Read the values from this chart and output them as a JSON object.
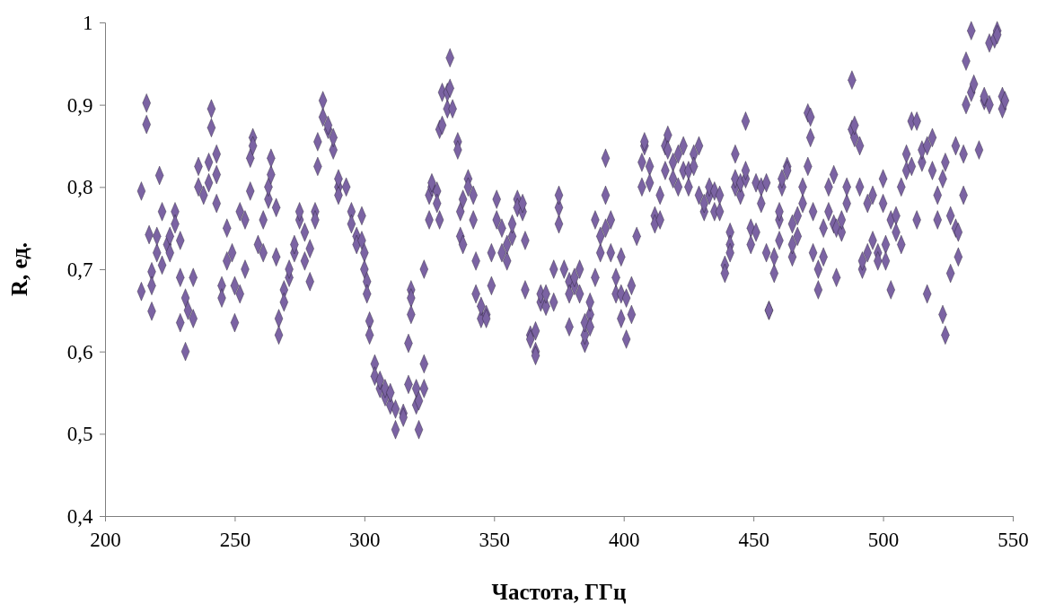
{
  "chart_data": {
    "type": "scatter",
    "xlabel": "Частота, ГГц",
    "ylabel": "R, ед.",
    "xlim": [
      200,
      550
    ],
    "xticks": [
      200,
      250,
      300,
      350,
      400,
      450,
      500,
      550
    ],
    "ylim": [
      0.4,
      1
    ],
    "yticks": [
      {
        "value": 0.4,
        "label": "0,4"
      },
      {
        "value": 0.5,
        "label": "0,5"
      },
      {
        "value": 0.6,
        "label": "0,6"
      },
      {
        "value": 0.7,
        "label": "0,7"
      },
      {
        "value": 0.8,
        "label": "0,8"
      },
      {
        "value": 0.9,
        "label": "0,9"
      },
      1
    ],
    "grid": false,
    "marker": "diamond",
    "series": [
      {
        "color": "#7b63a3",
        "x": [
          214,
          214,
          216,
          216,
          217,
          218,
          218,
          218,
          220,
          220,
          221,
          222,
          222,
          224,
          225,
          225,
          227,
          227,
          229,
          229,
          229,
          231,
          231,
          232,
          234,
          234,
          236,
          236,
          238,
          240,
          240,
          241,
          241,
          243,
          243,
          243,
          245,
          245,
          247,
          247,
          249,
          250,
          250,
          252,
          252,
          254,
          254,
          256,
          256,
          257,
          257,
          259,
          261,
          261,
          263,
          263,
          264,
          264,
          266,
          266,
          267,
          267,
          269,
          269,
          271,
          271,
          273,
          273,
          275,
          275,
          277,
          277,
          279,
          279,
          281,
          281,
          282,
          282,
          284,
          284,
          286,
          286,
          288,
          288,
          290,
          290,
          290,
          293,
          295,
          295,
          297,
          297,
          299,
          299,
          300,
          300,
          301,
          301,
          302,
          302,
          304,
          304,
          306,
          306,
          308,
          308,
          310,
          310,
          312,
          312,
          315,
          315,
          317,
          317,
          318,
          318,
          318,
          320,
          320,
          321,
          321,
          323,
          323,
          323,
          325,
          325,
          326,
          326,
          328,
          328,
          329,
          329,
          330,
          330,
          332,
          332,
          333,
          333,
          334,
          336,
          336,
          337,
          337,
          338,
          338,
          340,
          340,
          342,
          342,
          343,
          343,
          345,
          345,
          347,
          347,
          349,
          349,
          351,
          351,
          353,
          353,
          355,
          355,
          357,
          357,
          359,
          359,
          361,
          361,
          362,
          362,
          364,
          364,
          366,
          366,
          366,
          368,
          368,
          370,
          370,
          373,
          373,
          375,
          375,
          375,
          377,
          379,
          379,
          379,
          381,
          381,
          383,
          383,
          385,
          385,
          385,
          387,
          387,
          387,
          389,
          389,
          391,
          391,
          393,
          393,
          393,
          395,
          395,
          397,
          397,
          399,
          399,
          399,
          401,
          401,
          403,
          403,
          405,
          407,
          407,
          408,
          408,
          410,
          410,
          412,
          412,
          414,
          414,
          416,
          416,
          417,
          417,
          419,
          419,
          421,
          421,
          423,
          423,
          425,
          425,
          427,
          427,
          429,
          429,
          431,
          431,
          433,
          433,
          435,
          435,
          437,
          437,
          439,
          439,
          441,
          441,
          441,
          443,
          443,
          443,
          445,
          445,
          447,
          447,
          447,
          449,
          449,
          451,
          451,
          453,
          453,
          455,
          455,
          456,
          456,
          458,
          458,
          460,
          460,
          460,
          461,
          461,
          463,
          463,
          465,
          465,
          465,
          467,
          467,
          469,
          469,
          471,
          471,
          472,
          472,
          473,
          473,
          475,
          475,
          477,
          477,
          479,
          479,
          481,
          481,
          482,
          482,
          484,
          484,
          486,
          486,
          488,
          488,
          489,
          489,
          491,
          491,
          492,
          492,
          494,
          494,
          496,
          496,
          498,
          498,
          500,
          500,
          501,
          501,
          503,
          503,
          505,
          505,
          507,
          507,
          509,
          509,
          511,
          511,
          513,
          513,
          515,
          515,
          517,
          517,
          519,
          519,
          521,
          521,
          523,
          523,
          524,
          524,
          526,
          526,
          528,
          528,
          529,
          529,
          531,
          531,
          532,
          532,
          534,
          534,
          535,
          537,
          539,
          539,
          541,
          541,
          543,
          544,
          544,
          546,
          546,
          547
        ],
        "values": [
          0.795,
          0.673,
          0.902,
          0.876,
          0.742,
          0.697,
          0.68,
          0.649,
          0.72,
          0.74,
          0.814,
          0.77,
          0.705,
          0.73,
          0.74,
          0.72,
          0.77,
          0.755,
          0.735,
          0.635,
          0.69,
          0.6,
          0.665,
          0.65,
          0.69,
          0.64,
          0.825,
          0.8,
          0.79,
          0.83,
          0.805,
          0.895,
          0.872,
          0.84,
          0.815,
          0.78,
          0.68,
          0.665,
          0.75,
          0.71,
          0.72,
          0.635,
          0.68,
          0.67,
          0.77,
          0.76,
          0.7,
          0.795,
          0.835,
          0.86,
          0.85,
          0.73,
          0.72,
          0.76,
          0.785,
          0.8,
          0.815,
          0.835,
          0.775,
          0.715,
          0.64,
          0.62,
          0.675,
          0.66,
          0.69,
          0.7,
          0.72,
          0.73,
          0.76,
          0.77,
          0.745,
          0.71,
          0.685,
          0.725,
          0.77,
          0.76,
          0.825,
          0.855,
          0.885,
          0.905,
          0.87,
          0.875,
          0.845,
          0.86,
          0.8,
          0.79,
          0.81,
          0.8,
          0.77,
          0.755,
          0.74,
          0.73,
          0.765,
          0.735,
          0.72,
          0.7,
          0.685,
          0.67,
          0.637,
          0.62,
          0.585,
          0.57,
          0.555,
          0.565,
          0.545,
          0.555,
          0.535,
          0.55,
          0.505,
          0.53,
          0.525,
          0.52,
          0.61,
          0.56,
          0.675,
          0.665,
          0.645,
          0.555,
          0.535,
          0.505,
          0.54,
          0.585,
          0.555,
          0.7,
          0.76,
          0.79,
          0.8,
          0.805,
          0.795,
          0.78,
          0.76,
          0.87,
          0.915,
          0.875,
          0.895,
          0.915,
          0.957,
          0.92,
          0.895,
          0.855,
          0.845,
          0.77,
          0.74,
          0.73,
          0.785,
          0.81,
          0.8,
          0.79,
          0.76,
          0.71,
          0.67,
          0.64,
          0.655,
          0.645,
          0.64,
          0.68,
          0.72,
          0.785,
          0.76,
          0.75,
          0.72,
          0.71,
          0.73,
          0.74,
          0.755,
          0.785,
          0.775,
          0.77,
          0.78,
          0.735,
          0.675,
          0.62,
          0.615,
          0.6,
          0.595,
          0.625,
          0.66,
          0.67,
          0.655,
          0.67,
          0.66,
          0.7,
          0.755,
          0.775,
          0.79,
          0.7,
          0.685,
          0.63,
          0.67,
          0.68,
          0.69,
          0.67,
          0.7,
          0.61,
          0.62,
          0.635,
          0.645,
          0.63,
          0.66,
          0.69,
          0.76,
          0.72,
          0.74,
          0.835,
          0.79,
          0.75,
          0.76,
          0.72,
          0.67,
          0.69,
          0.64,
          0.67,
          0.715,
          0.665,
          0.615,
          0.645,
          0.68,
          0.74,
          0.8,
          0.83,
          0.85,
          0.855,
          0.825,
          0.805,
          0.765,
          0.755,
          0.76,
          0.79,
          0.82,
          0.85,
          0.863,
          0.845,
          0.83,
          0.81,
          0.8,
          0.84,
          0.85,
          0.82,
          0.8,
          0.82,
          0.84,
          0.825,
          0.85,
          0.79,
          0.77,
          0.78,
          0.79,
          0.8,
          0.795,
          0.77,
          0.77,
          0.79,
          0.705,
          0.695,
          0.745,
          0.73,
          0.72,
          0.8,
          0.84,
          0.81,
          0.79,
          0.805,
          0.88,
          0.81,
          0.82,
          0.75,
          0.73,
          0.745,
          0.805,
          0.8,
          0.78,
          0.72,
          0.805,
          0.65,
          0.65,
          0.695,
          0.715,
          0.735,
          0.76,
          0.77,
          0.8,
          0.81,
          0.825,
          0.82,
          0.755,
          0.715,
          0.73,
          0.74,
          0.765,
          0.78,
          0.8,
          0.825,
          0.89,
          0.885,
          0.86,
          0.77,
          0.72,
          0.7,
          0.675,
          0.715,
          0.75,
          0.77,
          0.8,
          0.815,
          0.755,
          0.69,
          0.75,
          0.745,
          0.76,
          0.78,
          0.8,
          0.93,
          0.87,
          0.86,
          0.875,
          0.85,
          0.8,
          0.7,
          0.71,
          0.72,
          0.78,
          0.79,
          0.735,
          0.72,
          0.71,
          0.81,
          0.78,
          0.73,
          0.71,
          0.675,
          0.76,
          0.765,
          0.745,
          0.8,
          0.73,
          0.84,
          0.82,
          0.88,
          0.825,
          0.88,
          0.76,
          0.83,
          0.845,
          0.67,
          0.85,
          0.86,
          0.82,
          0.76,
          0.79,
          0.81,
          0.645,
          0.62,
          0.83,
          0.765,
          0.695,
          0.75,
          0.85,
          0.715,
          0.745,
          0.79,
          0.84,
          0.953,
          0.9,
          0.99,
          0.915,
          0.925,
          0.845,
          0.905,
          0.91,
          0.9,
          0.975,
          0.98,
          0.99,
          0.985,
          0.91,
          0.895,
          0.905
        ]
      }
    ]
  }
}
